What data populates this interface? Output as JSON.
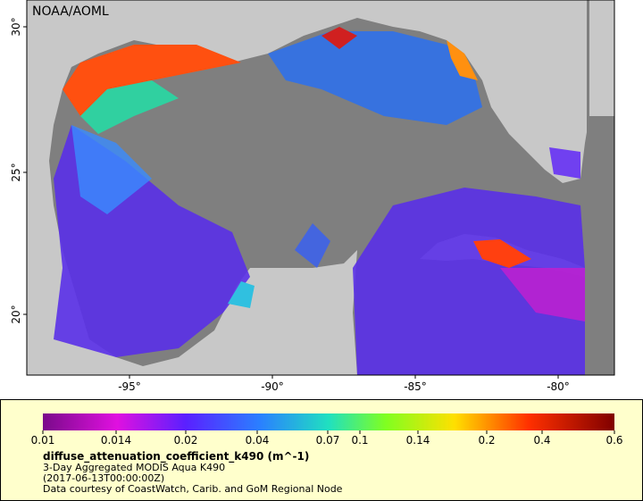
{
  "map": {
    "credit": "NOAA/AOML",
    "lat_labels": [
      "30°",
      "25°",
      "20°"
    ],
    "lon_labels": [
      "-95°",
      "-90°",
      "-85°",
      "-80°"
    ]
  },
  "legend": {
    "ticks": [
      0.01,
      0.014,
      0.02,
      0.04,
      0.07,
      0.1,
      0.14,
      0.2,
      0.4,
      0.6
    ],
    "variable": "diffuse_attenuation_coefficient_k490 (m^-1)",
    "description": "3-Day Aggregated MODIS Aqua K490",
    "time": "(2017-06-13T00:00:00Z)",
    "courtesy": "Data courtesy of CoastWatch, Carib. and GoM Regional Node"
  }
}
